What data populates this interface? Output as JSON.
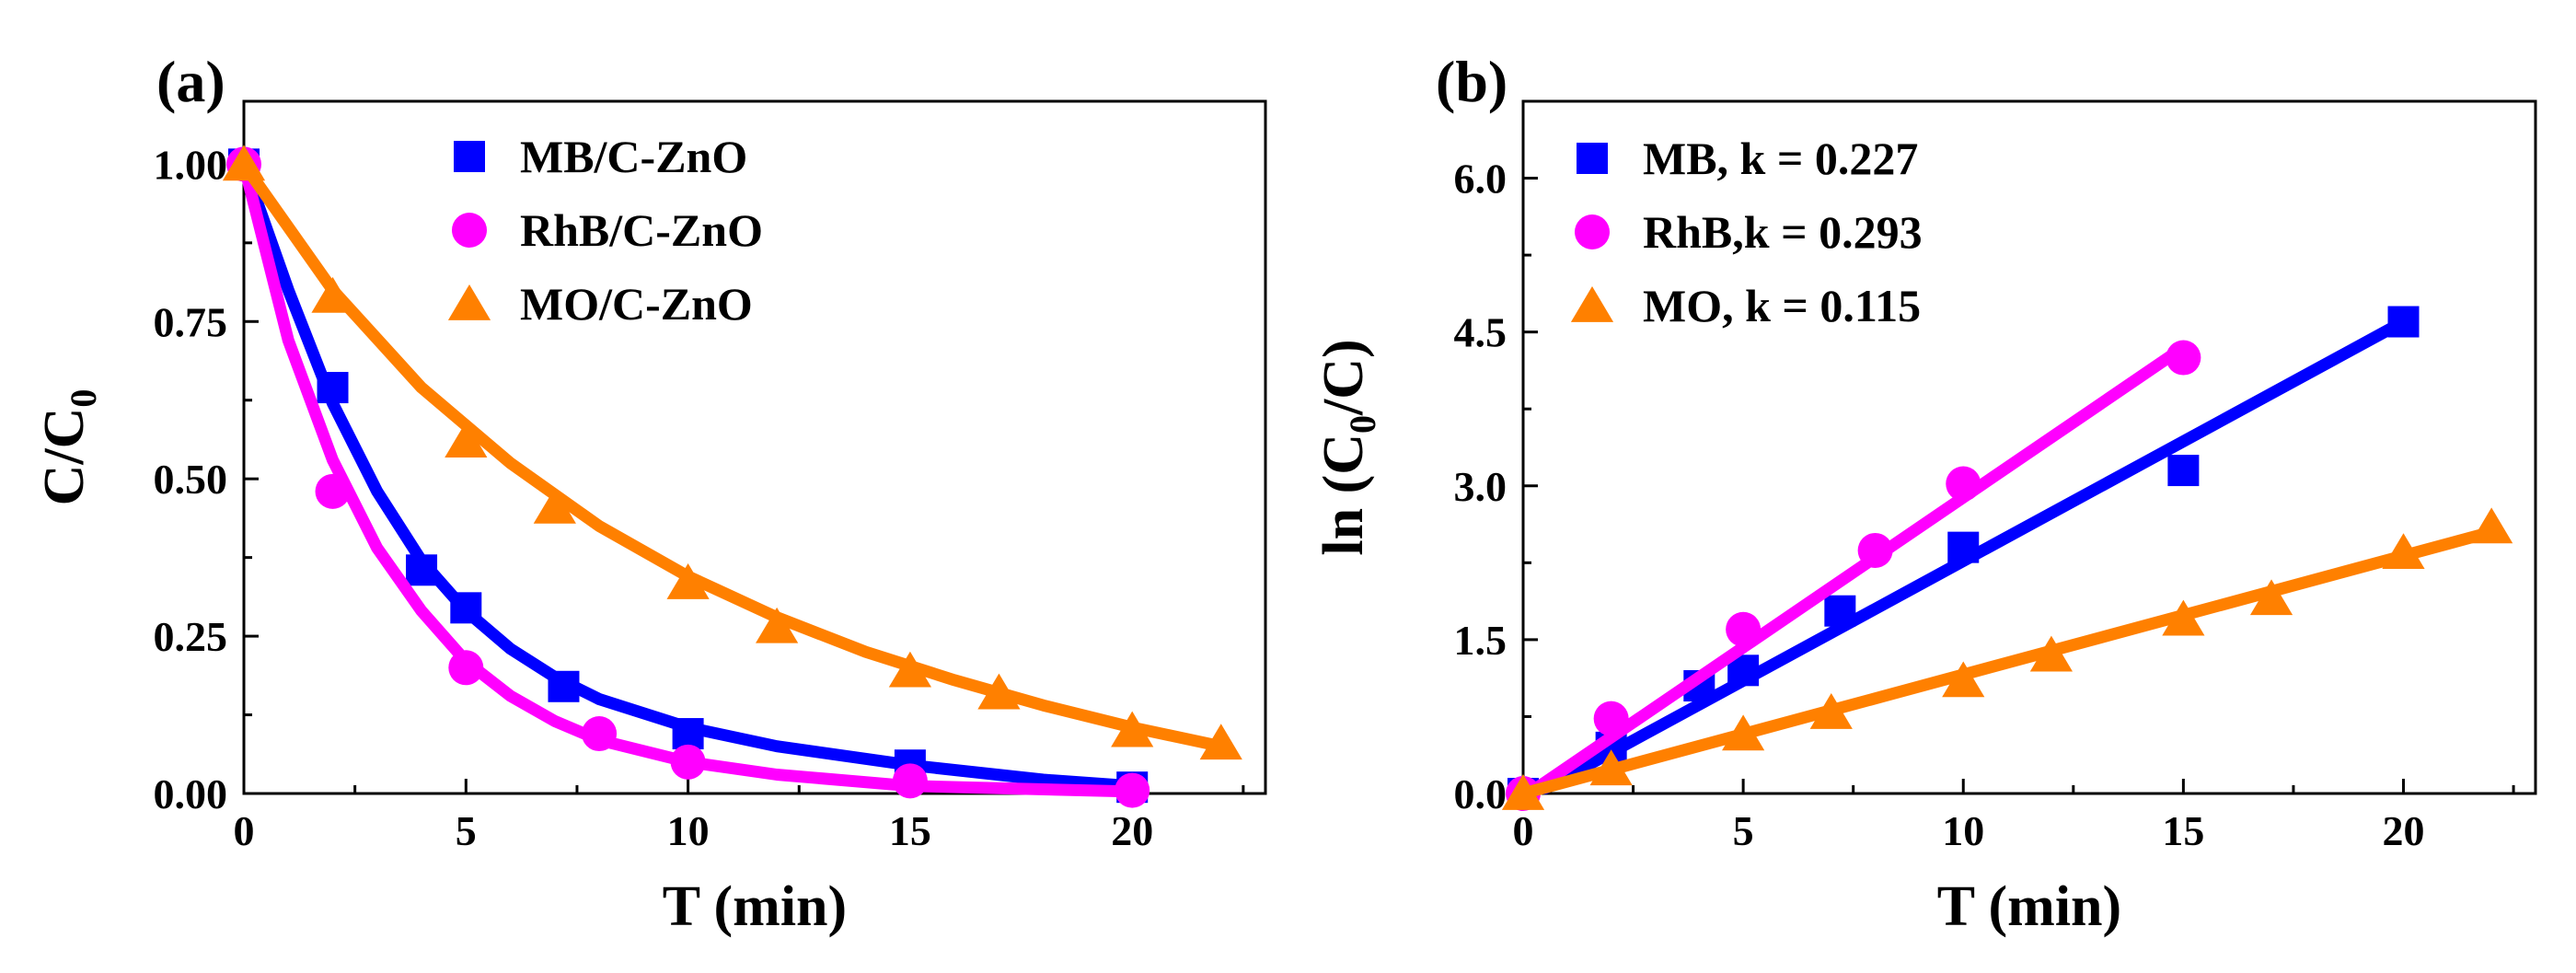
{
  "chart_data": [
    {
      "panel_label": "(a)",
      "type": "scatter",
      "title": "",
      "xlabel": "T (min)",
      "ylabel": {
        "main": "C/C",
        "sub": "0"
      },
      "xlim": [
        0,
        23
      ],
      "ylim": [
        0,
        1.1
      ],
      "xticks": [
        0,
        5,
        10,
        15,
        20
      ],
      "yticks": [
        0,
        0.25,
        0.5,
        0.75,
        1.0
      ],
      "ytick_labels": [
        "0.00",
        "0.25",
        "0.50",
        "0.75",
        "1.00"
      ],
      "grid": false,
      "legend_position": "top-center",
      "series": [
        {
          "name": "MB/C-ZnO",
          "marker": "square",
          "color": "#0000ff",
          "x": [
            0,
            2,
            4,
            5,
            7.2,
            10,
            15,
            20
          ],
          "y": [
            1.0,
            0.645,
            0.355,
            0.295,
            0.17,
            0.095,
            0.045,
            0.01
          ],
          "fit": [
            [
              0,
              1.0
            ],
            [
              1,
              0.8
            ],
            [
              2,
              0.62
            ],
            [
              3,
              0.48
            ],
            [
              4,
              0.37
            ],
            [
              5,
              0.29
            ],
            [
              6,
              0.23
            ],
            [
              7,
              0.185
            ],
            [
              8,
              0.15
            ],
            [
              10,
              0.105
            ],
            [
              12,
              0.075
            ],
            [
              15,
              0.045
            ],
            [
              18,
              0.022
            ],
            [
              20,
              0.012
            ]
          ]
        },
        {
          "name": "RhB/C-ZnO",
          "marker": "circle",
          "color": "#ff00ff",
          "x": [
            0,
            2,
            5,
            8,
            10,
            15,
            20
          ],
          "y": [
            1.0,
            0.48,
            0.2,
            0.095,
            0.05,
            0.02,
            0.005
          ],
          "fit": [
            [
              0,
              1.0
            ],
            [
              1,
              0.72
            ],
            [
              2,
              0.53
            ],
            [
              3,
              0.39
            ],
            [
              4,
              0.29
            ],
            [
              5,
              0.21
            ],
            [
              6,
              0.155
            ],
            [
              7,
              0.115
            ],
            [
              8,
              0.085
            ],
            [
              10,
              0.05
            ],
            [
              12,
              0.03
            ],
            [
              15,
              0.012
            ],
            [
              20,
              0.003
            ]
          ]
        },
        {
          "name": "MO/C-ZnO",
          "marker": "triangle",
          "color": "#ff8000",
          "x": [
            0,
            2,
            5,
            7,
            10,
            12,
            15,
            17,
            20,
            22
          ],
          "y": [
            1.0,
            0.79,
            0.56,
            0.455,
            0.335,
            0.265,
            0.195,
            0.16,
            0.1,
            0.08
          ],
          "fit": [
            [
              0,
              1.0
            ],
            [
              2,
              0.8
            ],
            [
              4,
              0.645
            ],
            [
              5,
              0.585
            ],
            [
              6,
              0.525
            ],
            [
              8,
              0.425
            ],
            [
              10,
              0.345
            ],
            [
              12,
              0.28
            ],
            [
              14,
              0.225
            ],
            [
              16,
              0.18
            ],
            [
              18,
              0.14
            ],
            [
              20,
              0.105
            ],
            [
              22,
              0.075
            ]
          ]
        }
      ]
    },
    {
      "panel_label": "(b)",
      "type": "scatter",
      "title": "",
      "xlabel": "T (min)",
      "ylabel": {
        "pre": "ln (C",
        "sub": "0",
        "post": "/C)"
      },
      "xlim": [
        0,
        23
      ],
      "ylim": [
        0,
        6.75
      ],
      "xticks": [
        0,
        5,
        10,
        15,
        20
      ],
      "yticks": [
        0,
        1.5,
        3.0,
        4.5,
        6.0
      ],
      "ytick_labels": [
        "0.0",
        "1.5",
        "3.0",
        "4.5",
        "6.0"
      ],
      "grid": false,
      "legend_position": "top-left",
      "series": [
        {
          "name": "MB, k = 0.227",
          "marker": "square",
          "color": "#0000ff",
          "x": [
            0,
            2,
            4,
            5,
            7.2,
            10,
            15,
            20
          ],
          "y": [
            0,
            0.45,
            1.05,
            1.2,
            1.78,
            2.4,
            3.15,
            4.6
          ],
          "fit": [
            [
              0.5,
              0.05
            ],
            [
              20,
              4.6
            ]
          ]
        },
        {
          "name": "RhB,k = 0.293",
          "marker": "circle",
          "color": "#ff00ff",
          "x": [
            0,
            2,
            5,
            8,
            10,
            15
          ],
          "y": [
            0,
            0.73,
            1.6,
            2.37,
            3.02,
            4.25
          ],
          "fit": [
            [
              0.3,
              0.05
            ],
            [
              15,
              4.35
            ]
          ]
        },
        {
          "name": "MO, k = 0.115",
          "marker": "triangle",
          "color": "#ff8000",
          "x": [
            0,
            2,
            5,
            7,
            10,
            12,
            15,
            17,
            20,
            22
          ],
          "y": [
            0,
            0.24,
            0.58,
            0.79,
            1.1,
            1.35,
            1.7,
            1.9,
            2.35,
            2.6
          ],
          "fit": [
            [
              0,
              0
            ],
            [
              22,
              2.55
            ]
          ]
        }
      ]
    }
  ]
}
